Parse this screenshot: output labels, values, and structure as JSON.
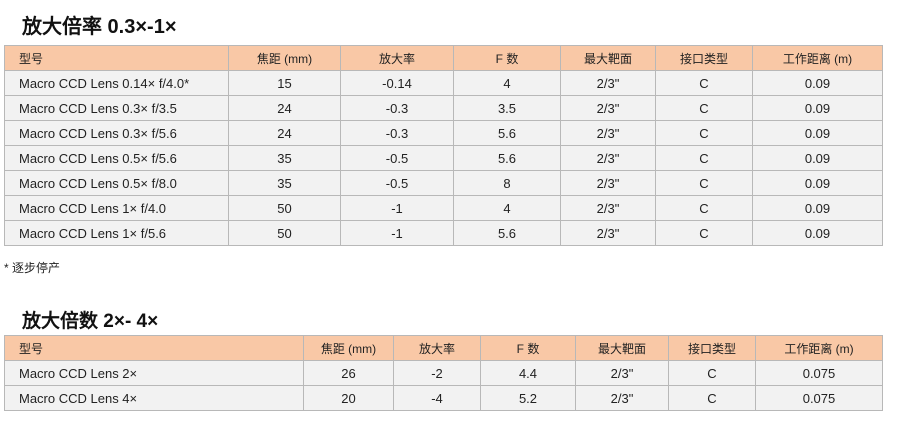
{
  "section1": {
    "title": "放大倍率 0.3×-1×",
    "headers": [
      "型号",
      "焦距 (mm)",
      "放大率",
      "F 数",
      "最大靶面",
      "接口类型",
      "工作距离 (m)"
    ],
    "rows": [
      [
        "Macro CCD Lens 0.14× f/4.0*",
        "15",
        "-0.14",
        "4",
        "2/3\"",
        "C",
        "0.09"
      ],
      [
        "Macro CCD Lens 0.3× f/3.5",
        "24",
        "-0.3",
        "3.5",
        "2/3\"",
        "C",
        "0.09"
      ],
      [
        "Macro CCD Lens 0.3× f/5.6",
        "24",
        "-0.3",
        "5.6",
        "2/3\"",
        "C",
        "0.09"
      ],
      [
        "Macro CCD Lens 0.5× f/5.6",
        "35",
        "-0.5",
        "5.6",
        "2/3\"",
        "C",
        "0.09"
      ],
      [
        "Macro CCD Lens 0.5× f/8.0",
        "35",
        "-0.5",
        "8",
        "2/3\"",
        "C",
        "0.09"
      ],
      [
        "Macro CCD Lens 1× f/4.0",
        "50",
        "-1",
        "4",
        "2/3\"",
        "C",
        "0.09"
      ],
      [
        "Macro CCD Lens 1× f/5.6",
        "50",
        "-1",
        "5.6",
        "2/3\"",
        "C",
        "0.09"
      ]
    ]
  },
  "note": "* 逐步停产",
  "section2": {
    "title": "放大倍数 2×- 4×",
    "headers": [
      "型号",
      "焦距 (mm)",
      "放大率",
      "F 数",
      "最大靶面",
      "接口类型",
      "工作距离 (m)"
    ],
    "rows": [
      [
        "Macro CCD Lens 2×",
        "26",
        "-2",
        "4.4",
        "2/3\"",
        "C",
        "0.075"
      ],
      [
        "Macro CCD Lens 4×",
        "20",
        "-4",
        "5.2",
        "2/3\"",
        "C",
        "0.075"
      ]
    ]
  },
  "colors": {
    "header_bg": "#f9c8a6",
    "row_bg": "#f2f2f2"
  }
}
